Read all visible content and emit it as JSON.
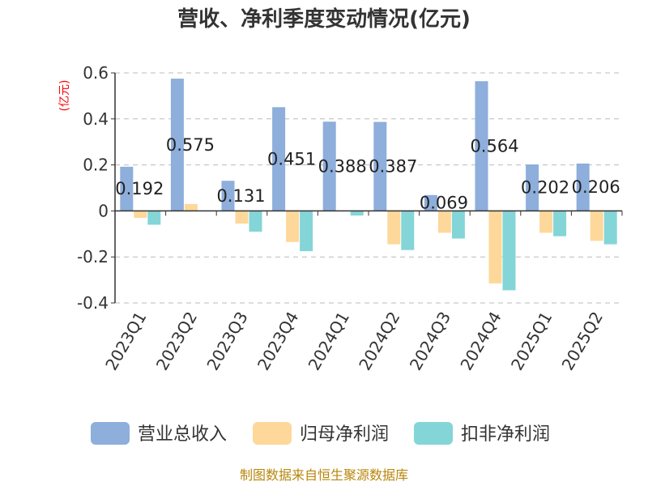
{
  "chart_data": {
    "type": "bar",
    "title": "营收、净利季度变动情况(亿元)",
    "ylabel": "(亿元)",
    "xlabel": "",
    "categories": [
      "2023Q1",
      "2023Q2",
      "2023Q3",
      "2023Q4",
      "2024Q1",
      "2024Q2",
      "2024Q3",
      "2024Q4",
      "2025Q1",
      "2025Q2"
    ],
    "yticks": [
      "0.6",
      "0.4",
      "0.2",
      "0",
      "-0.2",
      "-0.4"
    ],
    "ylim": [
      -0.4,
      0.6
    ],
    "grid": true,
    "legend_position": "bottom",
    "series": [
      {
        "name": "营业总收入",
        "color": "#8eaedb",
        "values": [
          0.192,
          0.575,
          0.131,
          0.451,
          0.388,
          0.387,
          0.069,
          0.564,
          0.202,
          0.206
        ],
        "labels": [
          "0.192",
          "0.575",
          "0.131",
          "0.451",
          "0.388",
          "0.387",
          "0.069",
          "0.564",
          "0.202",
          "0.206"
        ]
      },
      {
        "name": "归母净利润",
        "color": "#fdd89a",
        "values": [
          -0.03,
          0.03,
          -0.055,
          -0.135,
          0.0,
          -0.145,
          -0.095,
          -0.315,
          -0.095,
          -0.13
        ]
      },
      {
        "name": "扣非净利润",
        "color": "#84d5d7",
        "values": [
          -0.06,
          0.0,
          -0.09,
          -0.175,
          -0.02,
          -0.17,
          -0.12,
          -0.345,
          -0.11,
          -0.145
        ]
      }
    ]
  },
  "source": "制图数据来自恒生聚源数据库"
}
